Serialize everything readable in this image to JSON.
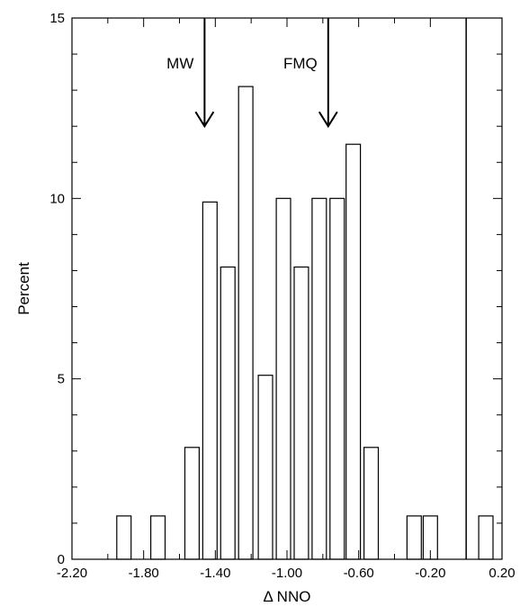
{
  "chart_data": {
    "type": "bar",
    "title": "",
    "xlabel": "Δ NNO",
    "ylabel": "Percent",
    "xlim": [
      -2.2,
      0.2
    ],
    "ylim": [
      0,
      15
    ],
    "grid": false,
    "legend": "none",
    "bin_width": 0.08,
    "x_ticks": [
      {
        "value": -2.2,
        "label": "-2.20"
      },
      {
        "value": -1.8,
        "label": "-1.80"
      },
      {
        "value": -1.4,
        "label": "-1.40"
      },
      {
        "value": -1.0,
        "label": "-1.00"
      },
      {
        "value": -0.6,
        "label": "-0.60"
      },
      {
        "value": -0.2,
        "label": "-0.20"
      },
      {
        "value": 0.2,
        "label": "0.20"
      }
    ],
    "y_ticks": [
      {
        "value": 0,
        "label": "0"
      },
      {
        "value": 5,
        "label": "5"
      },
      {
        "value": 10,
        "label": "10"
      },
      {
        "value": 15,
        "label": "15"
      }
    ],
    "bins": [
      {
        "x": -1.91,
        "value": 1.2
      },
      {
        "x": -1.72,
        "value": 1.2
      },
      {
        "x": -1.53,
        "value": 3.1
      },
      {
        "x": -1.43,
        "value": 9.9
      },
      {
        "x": -1.33,
        "value": 8.1
      },
      {
        "x": -1.23,
        "value": 13.1
      },
      {
        "x": -1.12,
        "value": 5.1
      },
      {
        "x": -1.02,
        "value": 10.0
      },
      {
        "x": -0.92,
        "value": 8.1
      },
      {
        "x": -0.82,
        "value": 10.0
      },
      {
        "x": -0.72,
        "value": 10.0
      },
      {
        "x": -0.63,
        "value": 11.5
      },
      {
        "x": -0.53,
        "value": 3.1
      },
      {
        "x": -0.29,
        "value": 1.2
      },
      {
        "x": -0.2,
        "value": 1.2
      },
      {
        "x": 0.11,
        "value": 1.2
      }
    ],
    "reference_line": {
      "x": 0.0
    },
    "annotations": [
      {
        "label": "MW",
        "x": -1.46,
        "arrow_tip_y": 12.0
      },
      {
        "label": "FMQ",
        "x": -0.77,
        "arrow_tip_y": 12.0
      }
    ]
  }
}
